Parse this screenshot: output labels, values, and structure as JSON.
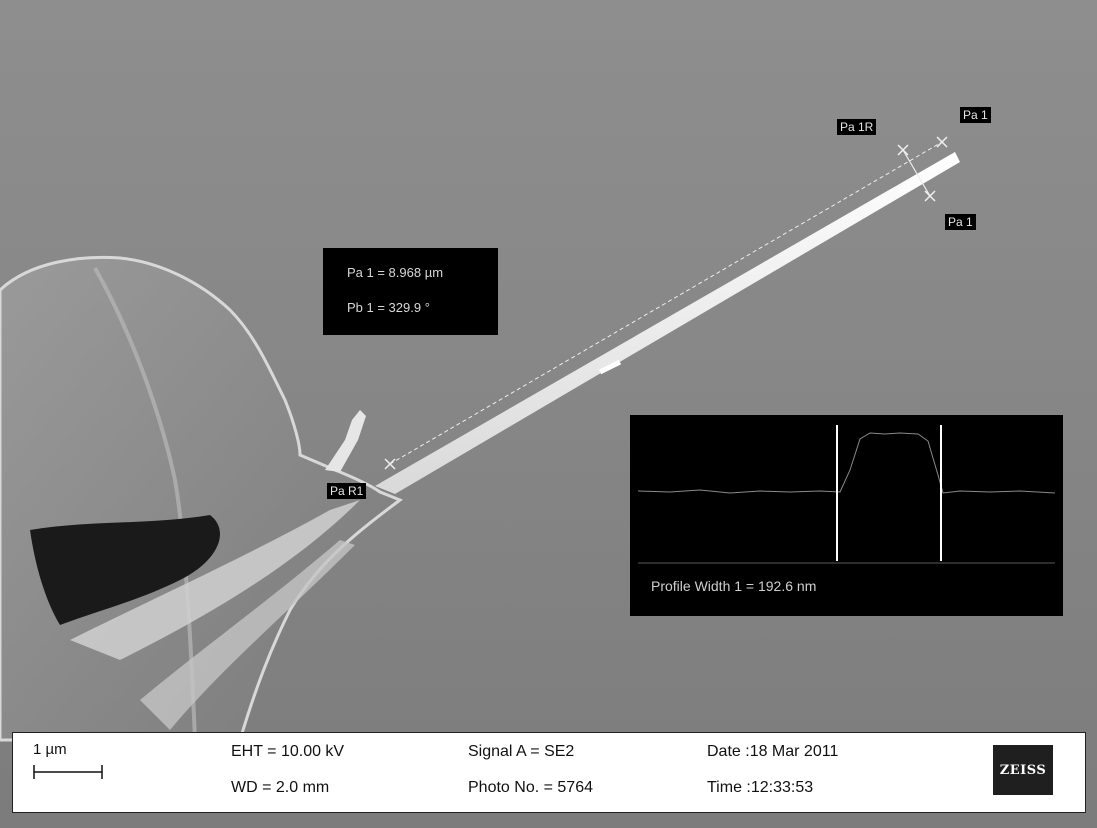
{
  "micrograph": {
    "tags": {
      "pa_1_top": "Pa 1",
      "pa_1r": "Pa 1R",
      "pa_1_lower": "Pa 1",
      "pa_r1": "Pa R1"
    },
    "measurement": {
      "length": "Pa 1 = 8.968 µm",
      "angle": "Pb 1 = 329.9 °"
    },
    "profile": {
      "caption": "Profile Width 1 = 192.6 nm"
    }
  },
  "info_bar": {
    "scale_label": "1 µm",
    "eht": "EHT = 10.00 kV",
    "wd": "WD =  2.0 mm",
    "signal": "Signal A = SE2",
    "photo_no": "Photo No. = 5764",
    "date": "Date :18 Mar 2011",
    "time": "Time :12:33:53",
    "logo": "ZEISS"
  }
}
